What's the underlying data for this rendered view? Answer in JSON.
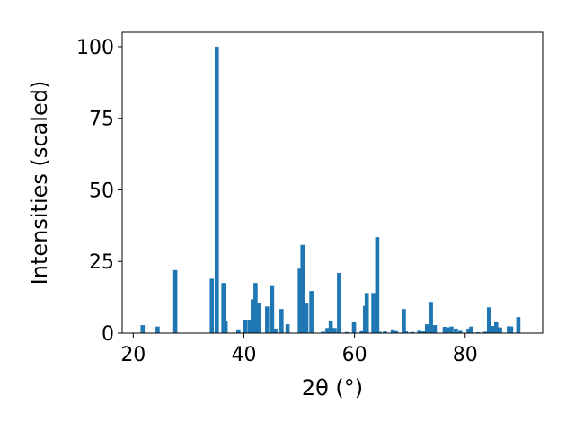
{
  "chart_data": {
    "type": "bar",
    "xlabel": "2θ (°)",
    "ylabel": "Intensities (scaled)",
    "xlim": [
      18,
      94
    ],
    "ylim": [
      0,
      105
    ],
    "xticks": [
      "20",
      "40",
      "60",
      "80"
    ],
    "yticks": [
      "0",
      "25",
      "50",
      "75",
      "100"
    ],
    "grid": false,
    "bar_color": "#1f77b4",
    "x": [
      21.7,
      24.4,
      27.6,
      34.2,
      35.1,
      36.3,
      36.7,
      39.0,
      40.3,
      41.1,
      41.6,
      42.1,
      42.7,
      44.2,
      45.1,
      45.7,
      46.8,
      47.9,
      50.1,
      50.6,
      51.3,
      52.2,
      54.3,
      55.1,
      55.7,
      56.4,
      57.2,
      58.6,
      59.9,
      61.3,
      61.9,
      62.2,
      63.4,
      64.1,
      64.5,
      65.5,
      66.9,
      67.5,
      68.9,
      69.3,
      70.4,
      71.7,
      72.4,
      73.1,
      73.8,
      74.5,
      76.3,
      76.9,
      77.5,
      78.3,
      79.1,
      80.6,
      81.1,
      82.3,
      83.6,
      84.3,
      84.9,
      85.6,
      86.3,
      87.9,
      88.3,
      89.6
    ],
    "values": [
      2.8,
      2.3,
      22,
      19,
      100,
      17.5,
      4.2,
      1.3,
      4.7,
      4.7,
      11.8,
      17.5,
      10.5,
      9.3,
      16.7,
      1.6,
      8.4,
      3.1,
      22.5,
      30.8,
      10.3,
      14.7,
      0.5,
      1.8,
      4.3,
      1.8,
      21,
      0.4,
      3.8,
      0.7,
      9.5,
      14,
      14,
      33.5,
      0.5,
      0.6,
      1.3,
      0.7,
      8.4,
      0.6,
      0.4,
      0.8,
      0.6,
      3.1,
      10.9,
      2.8,
      2.2,
      2,
      2.3,
      1.6,
      0.8,
      1.6,
      2.3,
      0.3,
      0.5,
      9,
      2.5,
      3.8,
      2,
      2.4,
      2.3,
      5.6
    ]
  }
}
